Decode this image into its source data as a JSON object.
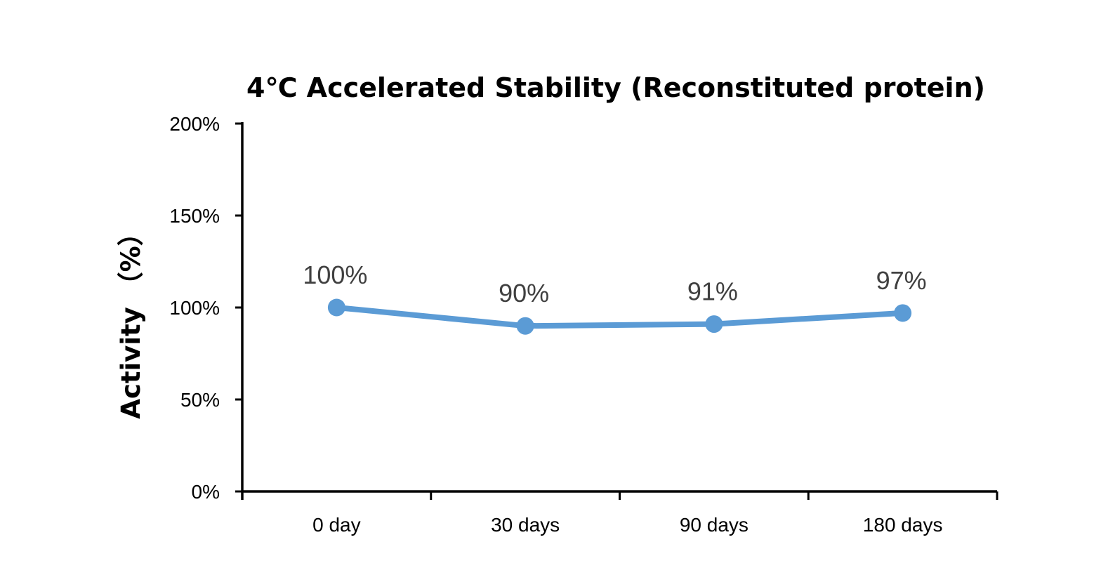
{
  "chart_data": {
    "type": "line",
    "title": "4℃ Accelerated Stability (Reconstituted protein)",
    "xlabel": "",
    "ylabel": "Activity （%）",
    "categories": [
      "0 day",
      "30 days",
      "90 days",
      "180 days"
    ],
    "series": [
      {
        "values": [
          100,
          90,
          91,
          97
        ],
        "data_labels": [
          "100%",
          "90%",
          "91%",
          "97%"
        ],
        "color": "#5B9BD5"
      }
    ],
    "ylim": [
      0,
      200
    ],
    "yticks": [
      0,
      50,
      100,
      150,
      200
    ],
    "ytick_labels": [
      "0%",
      "50%",
      "100%",
      "150%",
      "200%"
    ],
    "grid": false,
    "legend": "none",
    "axis_color": "#000000"
  }
}
